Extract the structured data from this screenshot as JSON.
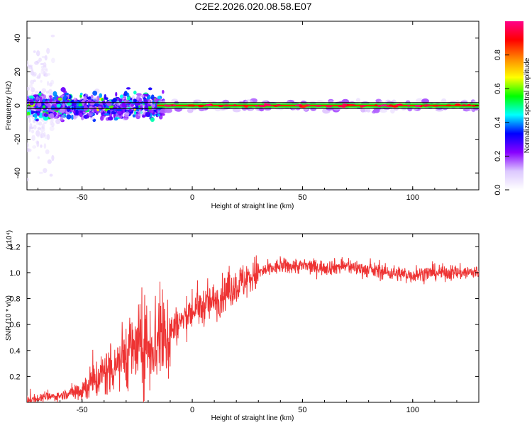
{
  "page_title": "C2E2.2026.020.08.58.E07",
  "chart_data": [
    {
      "type": "heatmap",
      "title": "",
      "xlabel": "Height of straight line (km)",
      "ylabel": "Frequency (Hz)",
      "xlim": [
        -75,
        130
      ],
      "ylim": [
        -50,
        50
      ],
      "xticks": [
        -50,
        0,
        50,
        100
      ],
      "yticks": [
        -40,
        -20,
        0,
        20,
        40
      ],
      "grid": false,
      "series_description": "Doppler spectrum; energy concentrated near 0 Hz, broad and noisy below ~-15 km, narrow and strong above",
      "colorbar": {
        "label": "Normalized spectral amplitude",
        "range": [
          0,
          1
        ],
        "ticks": [
          0.0,
          0.2,
          0.4,
          0.6,
          0.8
        ],
        "colors": [
          "#ffffff",
          "#dcc8ff",
          "#8800ff",
          "#0000ff",
          "#00ffff",
          "#00ff00",
          "#ffff00",
          "#ff8800",
          "#ff0000",
          "#ff0088"
        ]
      }
    },
    {
      "type": "line",
      "title": "",
      "xlabel": "Height of straight line (km)",
      "ylabel": "SNR (10 * v/v)",
      "y_multiplier": "(x10⁴)",
      "xlim": [
        -75,
        130
      ],
      "ylim": [
        0,
        1.3
      ],
      "xticks": [
        -50,
        0,
        50,
        100
      ],
      "yticks": [
        0.2,
        0.4,
        0.6,
        0.8,
        1.0,
        1.2
      ],
      "color": "#ee3333",
      "grid": false,
      "trend": {
        "x": [
          -75,
          -60,
          -50,
          -40,
          -30,
          -20,
          -10,
          0,
          10,
          20,
          30,
          40,
          50,
          60,
          70,
          80,
          90,
          100,
          110,
          120,
          130
        ],
        "y": [
          0.02,
          0.05,
          0.1,
          0.22,
          0.38,
          0.45,
          0.55,
          0.7,
          0.78,
          0.9,
          1.0,
          1.05,
          1.05,
          1.04,
          1.05,
          1.02,
          1.0,
          0.98,
          1.0,
          1.0,
          1.0
        ]
      }
    }
  ]
}
